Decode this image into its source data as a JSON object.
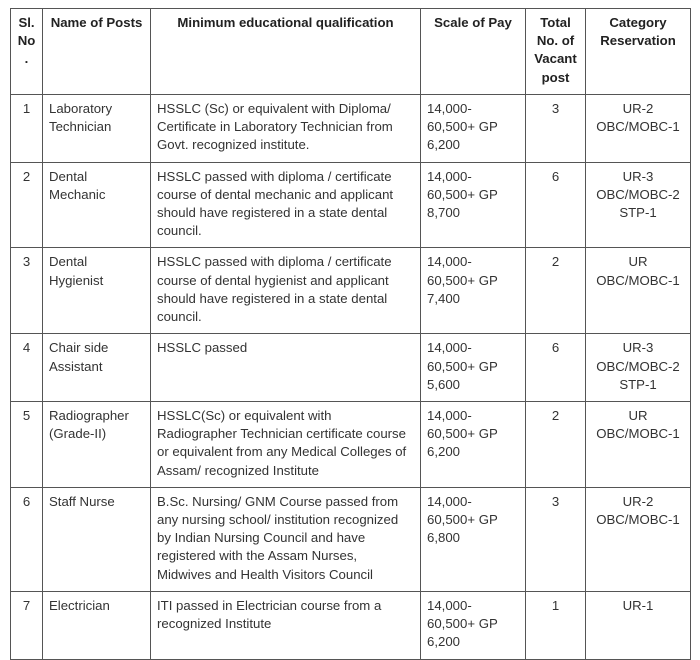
{
  "table": {
    "columns": {
      "sl": "Sl. No.",
      "name": "Name of Posts",
      "qual": "Minimum educational qualification",
      "pay": "Scale of Pay",
      "vac": "Total No. of Vacant post",
      "cat": "Category Reservation"
    },
    "rows": [
      {
        "sl": "1",
        "name": "Laboratory Technician",
        "qual": "HSSLC (Sc) or equivalent with Diploma/ Certificate in Laboratory Technician from Govt. recognized institute.",
        "pay": "14,000-60,500+ GP 6,200",
        "vac": "3",
        "cat": [
          "UR-2",
          "OBC/MOBC-1"
        ]
      },
      {
        "sl": "2",
        "name": "Dental Mechanic",
        "qual": "HSSLC passed with diploma / certificate course of dental mechanic and applicant should have registered in a state dental council.",
        "pay": "14,000-60,500+ GP 8,700",
        "vac": "6",
        "cat": [
          "UR-3",
          "OBC/MOBC-2",
          "STP-1"
        ]
      },
      {
        "sl": "3",
        "name": "Dental Hygienist",
        "qual": "HSSLC passed with diploma / certificate course of dental hygienist and applicant should have registered in a state dental council.",
        "pay": "14,000-60,500+ GP 7,400",
        "vac": "2",
        "cat": [
          "UR",
          "OBC/MOBC-1"
        ]
      },
      {
        "sl": "4",
        "name": "Chair side Assistant",
        "qual": "HSSLC passed",
        "pay": "14,000-60,500+ GP 5,600",
        "vac": "6",
        "cat": [
          "UR-3",
          "OBC/MOBC-2",
          "STP-1"
        ]
      },
      {
        "sl": "5",
        "name": "Radiographer (Grade-II)",
        "qual": "HSSLC(Sc) or equivalent with Radiographer Technician certificate course or equivalent from any Medical Colleges of Assam/ recognized Institute",
        "pay": "14,000-60,500+ GP 6,200",
        "vac": "2",
        "cat": [
          "UR",
          "OBC/MOBC-1"
        ]
      },
      {
        "sl": "6",
        "name": "Staff Nurse",
        "qual": "B.Sc. Nursing/ GNM Course passed from any nursing school/ institution recognized by Indian Nursing Council and have registered with the Assam Nurses, Midwives and Health Visitors Council",
        "pay": "14,000-60,500+ GP 6,800",
        "vac": "3",
        "cat": [
          "UR-2",
          "OBC/MOBC-1"
        ]
      },
      {
        "sl": "7",
        "name": "Electrician",
        "qual": "ITI passed in Electrician course from a recognized Institute",
        "pay": "14,000-60,500+ GP 6,200",
        "vac": "1",
        "cat": [
          "UR-1"
        ]
      }
    ]
  }
}
